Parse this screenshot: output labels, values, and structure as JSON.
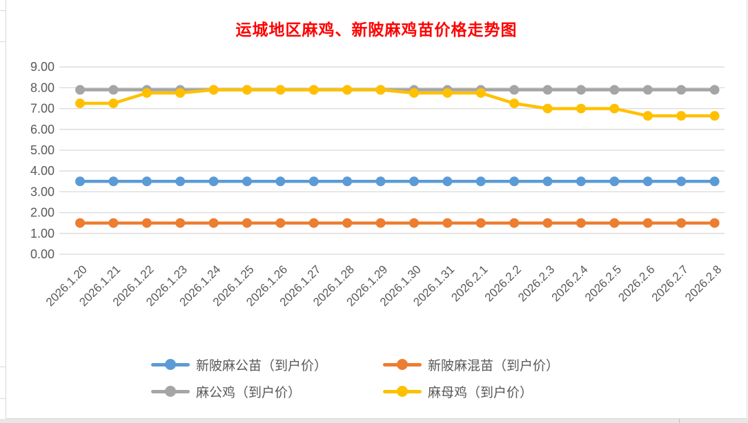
{
  "chart_data": {
    "type": "line",
    "title": "运城地区麻鸡、新陂麻鸡苗价格走势图",
    "title_color": "#FF0000",
    "categories": [
      "2026.1.20",
      "2026.1.21",
      "2026.1.22",
      "2026.1.23",
      "2026.1.24",
      "2026.1.25",
      "2026.1.26",
      "2026.1.27",
      "2026.1.28",
      "2026.1.29",
      "2026.1.30",
      "2026.1.31",
      "2026.2.1",
      "2026.2.2",
      "2026.2.3",
      "2026.2.4",
      "2026.2.5",
      "2026.2.6",
      "2026.2.7",
      "2026.2.8"
    ],
    "series": [
      {
        "name": "新陂麻公苗（到户价）",
        "color": "#5B9BD5",
        "values": [
          3.5,
          3.5,
          3.5,
          3.5,
          3.5,
          3.5,
          3.5,
          3.5,
          3.5,
          3.5,
          3.5,
          3.5,
          3.5,
          3.5,
          3.5,
          3.5,
          3.5,
          3.5,
          3.5,
          3.5
        ]
      },
      {
        "name": "新陂麻混苗（到户价）",
        "color": "#ED7D31",
        "values": [
          1.5,
          1.5,
          1.5,
          1.5,
          1.5,
          1.5,
          1.5,
          1.5,
          1.5,
          1.5,
          1.5,
          1.5,
          1.5,
          1.5,
          1.5,
          1.5,
          1.5,
          1.5,
          1.5,
          1.5
        ]
      },
      {
        "name": "麻公鸡（到户价）",
        "color": "#A5A5A5",
        "values": [
          7.9,
          7.9,
          7.9,
          7.9,
          7.9,
          7.9,
          7.9,
          7.9,
          7.9,
          7.9,
          7.9,
          7.9,
          7.9,
          7.9,
          7.9,
          7.9,
          7.9,
          7.9,
          7.9,
          7.9
        ]
      },
      {
        "name": "麻母鸡（到户价）",
        "color": "#FFC000",
        "values": [
          7.25,
          7.25,
          7.75,
          7.75,
          7.9,
          7.9,
          7.9,
          7.9,
          7.9,
          7.9,
          7.75,
          7.75,
          7.75,
          7.25,
          7.0,
          7.0,
          7.0,
          6.65,
          6.65,
          6.65
        ]
      }
    ],
    "xlabel": "",
    "ylabel": "",
    "ylim": [
      0,
      9
    ],
    "ytick_step": 1,
    "ytick_decimals": 2,
    "grid": "horizontal",
    "legend_position": "bottom",
    "axis_text_color": "#595959",
    "gridline_color": "#D9D9D9"
  }
}
